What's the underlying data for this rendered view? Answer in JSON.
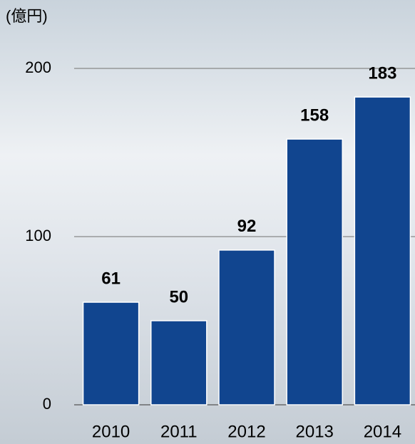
{
  "chart_data": {
    "type": "bar",
    "unit_label": "(億円)",
    "categories": [
      "2010",
      "2011",
      "2012",
      "2013",
      "2014"
    ],
    "values": [
      61,
      50,
      92,
      158,
      183
    ],
    "color": "#11458f",
    "ylim": [
      0,
      200
    ],
    "yticks": [
      0,
      100,
      200
    ],
    "grid": true
  }
}
